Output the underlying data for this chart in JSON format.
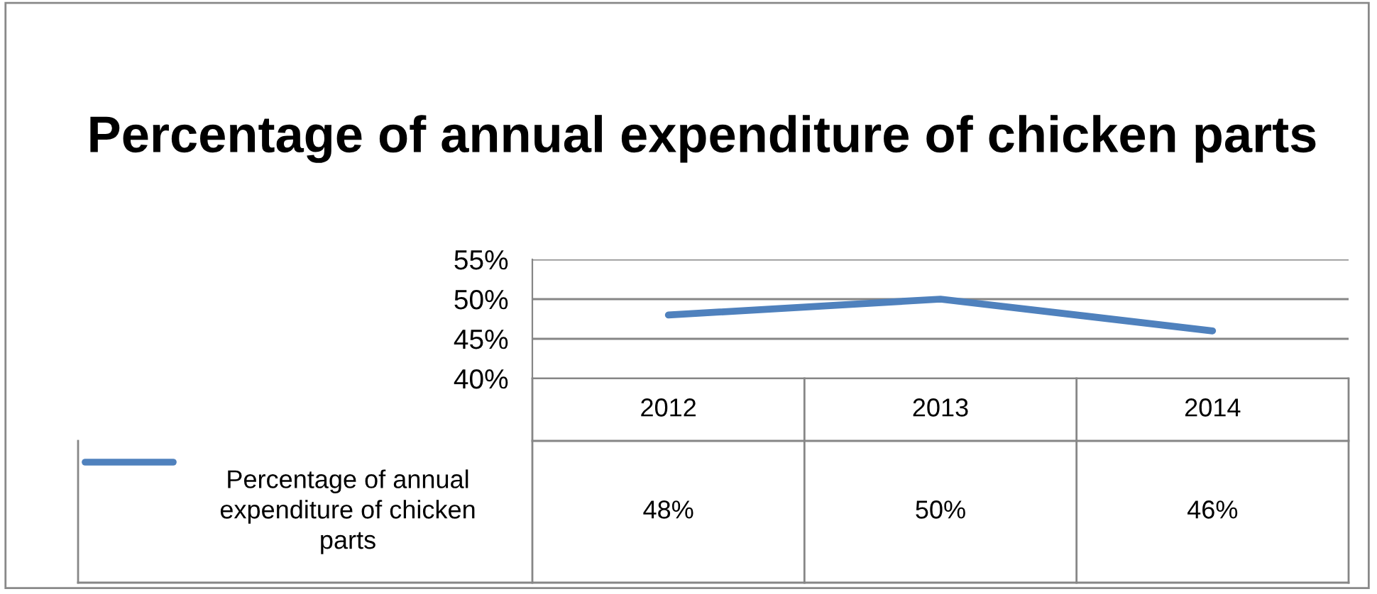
{
  "chart_data": {
    "type": "line",
    "title": "Percentage of annual expenditure of chicken parts",
    "categories": [
      "2012",
      "2013",
      "2014"
    ],
    "series": [
      {
        "name": "Percentage of annual expenditure of chicken parts",
        "color": "#4f81bd",
        "values": [
          48,
          50,
          46
        ],
        "value_labels": [
          "48%",
          "50%",
          "46%"
        ]
      }
    ],
    "ylim": [
      40,
      55
    ],
    "yticks": [
      {
        "value": 40,
        "label": "40%"
      },
      {
        "value": 45,
        "label": "45%"
      },
      {
        "value": 50,
        "label": "50%"
      },
      {
        "value": 55,
        "label": "55%"
      }
    ],
    "grid": "y",
    "legend": "bottom left",
    "marker": "none",
    "line_style": "solid"
  }
}
